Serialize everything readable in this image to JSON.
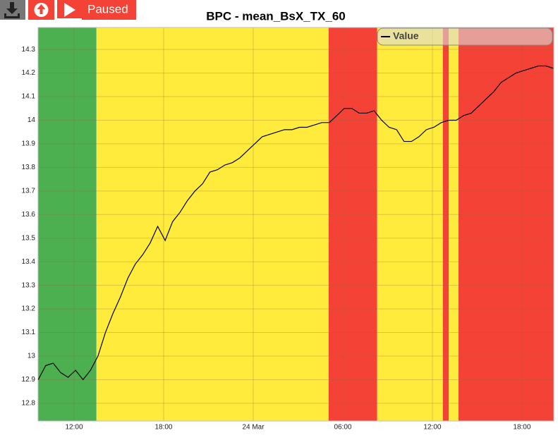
{
  "toolbar": {
    "status": "Paused"
  },
  "chart_data": {
    "type": "line",
    "title": "BPC - mean_BsX_TX_60",
    "x": [
      9.6,
      10.1,
      10.6,
      11.1,
      11.6,
      12.1,
      12.6,
      13.1,
      13.6,
      14.1,
      14.6,
      15.1,
      15.6,
      16.1,
      16.6,
      17.1,
      17.6,
      18.1,
      18.6,
      19.1,
      19.6,
      20.1,
      20.6,
      21.1,
      21.6,
      22.1,
      22.6,
      23.1,
      23.6,
      24.1,
      24.6,
      25.1,
      25.6,
      26.1,
      26.6,
      27.1,
      27.6,
      28.1,
      28.6,
      29.1,
      29.6,
      30.1,
      30.6,
      31.1,
      31.6,
      32.1,
      32.6,
      33.1,
      33.6,
      34.1,
      34.6,
      35.1,
      35.6,
      36.1,
      36.6,
      37.1,
      37.6,
      38.1,
      38.6,
      39.1,
      39.6,
      40.1,
      40.6,
      41.1,
      41.6,
      42.1,
      42.6,
      43.1,
      43.6,
      44.1
    ],
    "series": [
      {
        "name": "Value",
        "color": "#000000",
        "values": [
          12.9,
          12.96,
          12.97,
          12.93,
          12.91,
          12.94,
          12.9,
          12.94,
          13.0,
          13.1,
          13.18,
          13.25,
          13.33,
          13.39,
          13.43,
          13.48,
          13.55,
          13.49,
          13.57,
          13.61,
          13.66,
          13.7,
          13.73,
          13.78,
          13.79,
          13.81,
          13.82,
          13.84,
          13.87,
          13.9,
          13.93,
          13.94,
          13.95,
          13.96,
          13.96,
          13.97,
          13.97,
          13.98,
          13.99,
          13.99,
          14.02,
          14.05,
          14.05,
          14.03,
          14.03,
          14.04,
          14.0,
          13.97,
          13.96,
          13.91,
          13.91,
          13.93,
          13.96,
          13.97,
          13.99,
          14.0,
          14.0,
          14.02,
          14.03,
          14.06,
          14.09,
          14.12,
          14.16,
          14.18,
          14.2,
          14.21,
          14.22,
          14.23,
          14.23,
          14.22
        ]
      }
    ],
    "bands": [
      {
        "start": 9.59,
        "end": 13.5,
        "color": "#4caf50"
      },
      {
        "start": 13.5,
        "end": 29.05,
        "color": "#ffeb3b"
      },
      {
        "start": 29.05,
        "end": 32.3,
        "color": "#f44336"
      },
      {
        "start": 32.3,
        "end": 36.7,
        "color": "#ffeb3b"
      },
      {
        "start": 36.7,
        "end": 37.1,
        "color": "#f44336"
      },
      {
        "start": 37.1,
        "end": 37.75,
        "color": "#ffeb3b"
      },
      {
        "start": 37.75,
        "end": 44.13,
        "color": "#f44336"
      }
    ],
    "xlim": [
      9.59,
      44.13
    ],
    "xticks": [
      {
        "value": 12,
        "label": "12:00"
      },
      {
        "value": 18,
        "label": "18:00"
      },
      {
        "value": 24,
        "label": "24 Mar"
      },
      {
        "value": 30,
        "label": "06:00"
      },
      {
        "value": 36,
        "label": "12:00"
      },
      {
        "value": 42,
        "label": "18:00"
      }
    ],
    "ylim": [
      12.725,
      14.393
    ],
    "yticks": [
      12.8,
      12.9,
      13,
      13.1,
      13.2,
      13.3,
      13.4,
      13.5,
      13.6,
      13.7,
      13.8,
      13.9,
      14,
      14.1,
      14.2,
      14.3
    ],
    "grid": true,
    "legend": "upper right"
  }
}
